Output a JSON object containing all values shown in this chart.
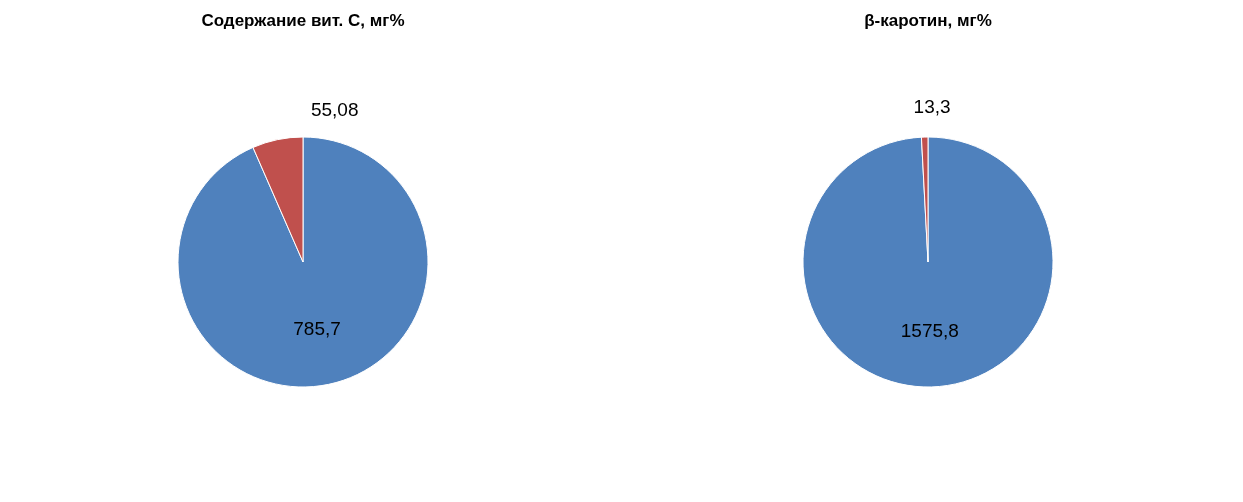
{
  "chart_data": [
    {
      "type": "pie",
      "title": "Содержание вит. С, мг%",
      "categories": [
        null,
        null
      ],
      "values": [
        785.7,
        55.08
      ],
      "colors": [
        "#4f81bd",
        "#c0504d"
      ],
      "value_labels": [
        "785,7",
        "55,08"
      ],
      "legend": false
    },
    {
      "type": "pie",
      "title": "β-каротин, мг%",
      "categories": [
        null,
        null
      ],
      "values": [
        1575.8,
        13.3
      ],
      "colors": [
        "#4f81bd",
        "#c0504d"
      ],
      "value_labels": [
        "1575,8",
        "13,3"
      ],
      "legend": false
    }
  ]
}
